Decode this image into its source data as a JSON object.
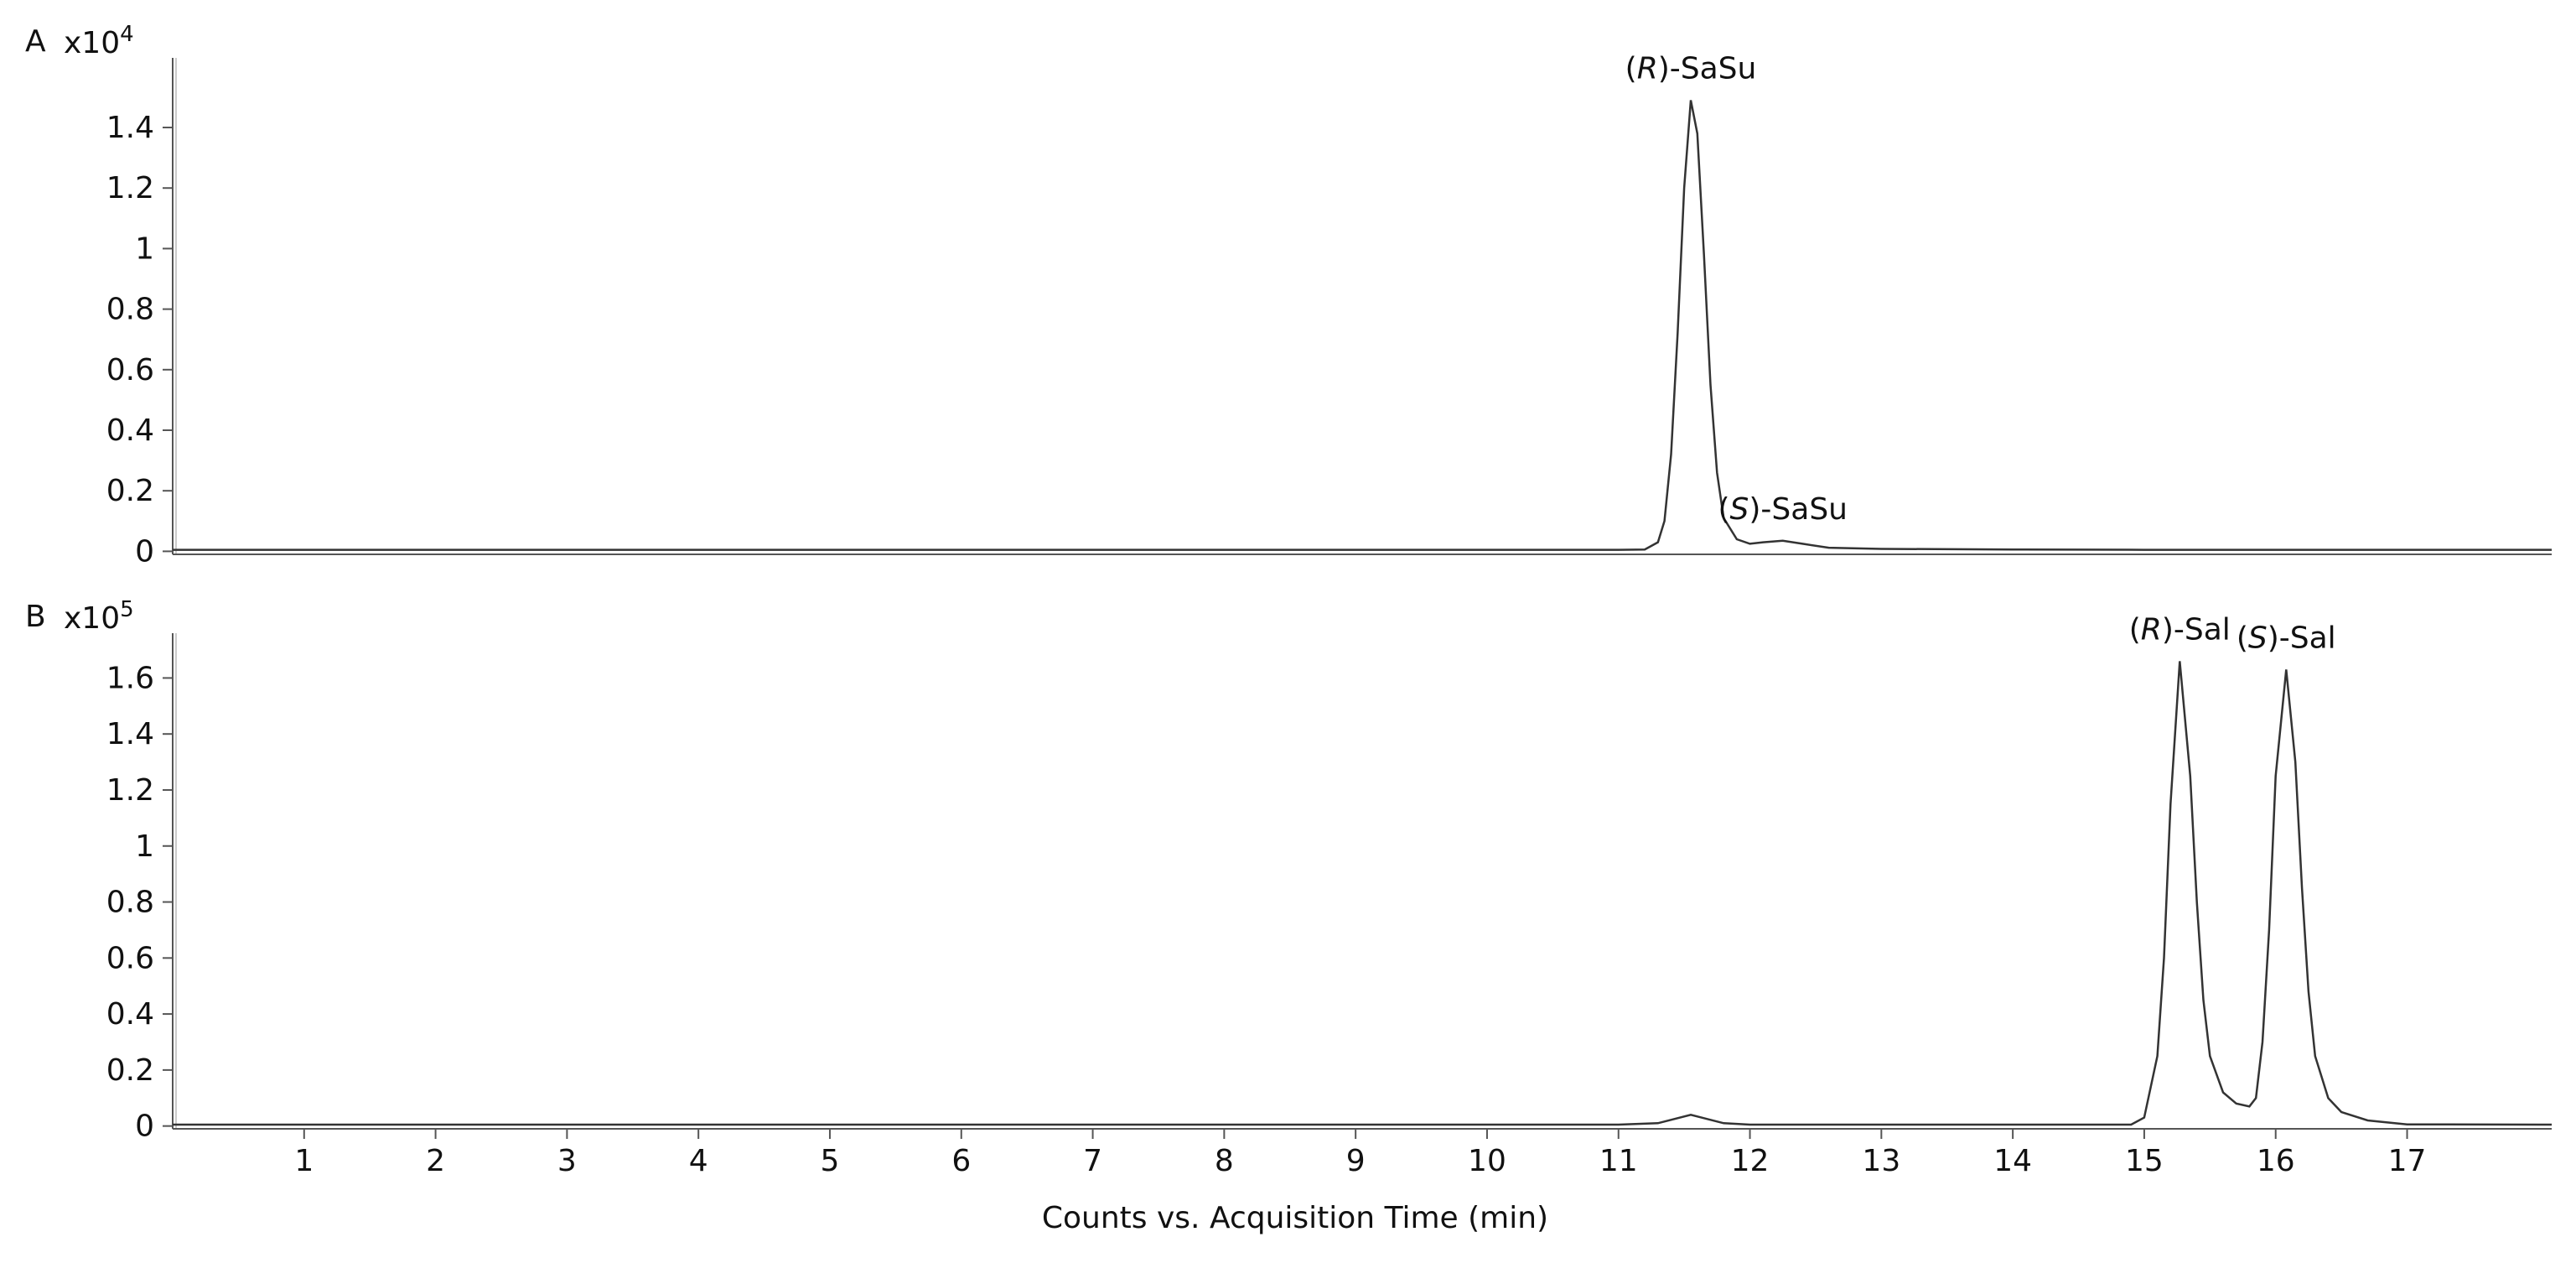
{
  "chart_data": [
    {
      "type": "line",
      "panel_label": "A",
      "y_scale_base": "x10",
      "y_scale_exponent": "4",
      "color": "#333333",
      "xlim": [
        0,
        18.1
      ],
      "ylim": [
        -0.01,
        1.63
      ],
      "yticks": [
        0,
        0.2,
        0.4,
        0.6,
        0.8,
        1,
        1.2,
        1.4
      ],
      "x": [
        0,
        1,
        2,
        3,
        4,
        5,
        6,
        7,
        8,
        9,
        10,
        11,
        11.2,
        11.3,
        11.35,
        11.4,
        11.45,
        11.5,
        11.55,
        11.6,
        11.65,
        11.7,
        11.75,
        11.8,
        11.9,
        12.0,
        12.1,
        12.25,
        12.4,
        12.6,
        13,
        14,
        15,
        16,
        17,
        18,
        18.1
      ],
      "values": [
        0.005,
        0.005,
        0.005,
        0.005,
        0.005,
        0.005,
        0.005,
        0.005,
        0.005,
        0.005,
        0.005,
        0.005,
        0.006,
        0.03,
        0.1,
        0.32,
        0.72,
        1.2,
        1.49,
        1.38,
        0.98,
        0.55,
        0.26,
        0.11,
        0.04,
        0.025,
        0.03,
        0.035,
        0.025,
        0.012,
        0.008,
        0.006,
        0.005,
        0.005,
        0.005,
        0.005,
        0.005
      ],
      "annotations": [
        {
          "open": "(",
          "italic": "R",
          "close": ")-SaSu"
        },
        {
          "open": "(",
          "italic": "S",
          "close": ")-SaSu"
        }
      ]
    },
    {
      "type": "line",
      "panel_label": "B",
      "y_scale_base": "x10",
      "y_scale_exponent": "5",
      "color": "#333333",
      "xlim": [
        0,
        18.1
      ],
      "ylim": [
        -0.01,
        1.76
      ],
      "yticks": [
        0,
        0.2,
        0.4,
        0.6,
        0.8,
        1,
        1.2,
        1.4,
        1.6
      ],
      "xticks": [
        1,
        2,
        3,
        4,
        5,
        6,
        7,
        8,
        9,
        10,
        11,
        12,
        13,
        14,
        15,
        16,
        17
      ],
      "x_label": "Counts vs. Acquisition Time (min)",
      "x": [
        0,
        1,
        2,
        3,
        4,
        5,
        6,
        7,
        8,
        9,
        10,
        11,
        11.3,
        11.55,
        11.8,
        12,
        13,
        14,
        14.9,
        15.0,
        15.1,
        15.15,
        15.2,
        15.27,
        15.35,
        15.4,
        15.45,
        15.5,
        15.6,
        15.7,
        15.8,
        15.85,
        15.9,
        15.95,
        16.0,
        16.08,
        16.15,
        16.2,
        16.25,
        16.3,
        16.4,
        16.5,
        16.7,
        17,
        18,
        18.1
      ],
      "values": [
        0.005,
        0.005,
        0.005,
        0.005,
        0.005,
        0.005,
        0.005,
        0.005,
        0.005,
        0.005,
        0.005,
        0.005,
        0.01,
        0.04,
        0.01,
        0.005,
        0.005,
        0.005,
        0.005,
        0.03,
        0.25,
        0.6,
        1.15,
        1.66,
        1.25,
        0.8,
        0.45,
        0.25,
        0.12,
        0.08,
        0.07,
        0.1,
        0.3,
        0.7,
        1.25,
        1.63,
        1.3,
        0.85,
        0.48,
        0.25,
        0.1,
        0.05,
        0.02,
        0.006,
        0.005,
        0.005
      ],
      "annotations": [
        {
          "open": "(",
          "italic": "R",
          "close": ")-Sal"
        },
        {
          "open": "(",
          "italic": "S",
          "close": ")-Sal"
        }
      ]
    }
  ]
}
